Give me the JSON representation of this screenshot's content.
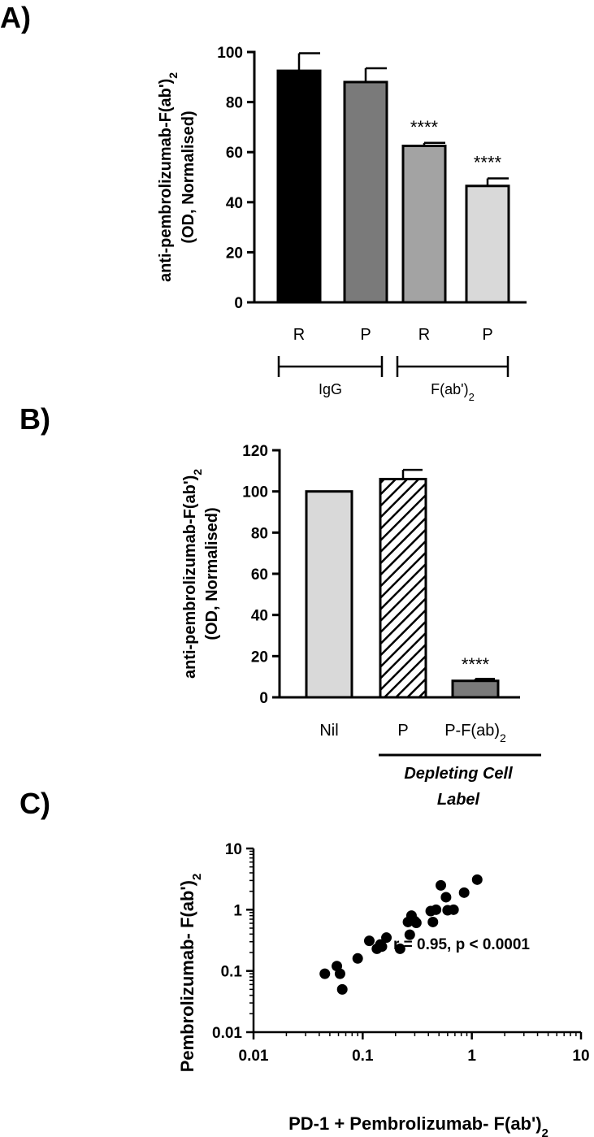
{
  "panels": {
    "a": "A)",
    "b": "B)",
    "c": "C)"
  },
  "colors": {
    "black": "#000000",
    "dark_gray": "#7a7a7a",
    "mid_gray": "#a3a3a3",
    "light_gray": "#d9d9d9"
  },
  "chart_data": [
    {
      "type": "bar",
      "panel": "A)",
      "ylabel_line1": "anti-pembrolizumab-F(ab')",
      "ylabel_sub": "2",
      "ylabel_line2": "(OD, Normalised)",
      "ylim": [
        0,
        100
      ],
      "yticks": [
        0,
        20,
        40,
        60,
        80,
        100
      ],
      "categories": [
        "R",
        "P",
        "R",
        "P"
      ],
      "values": [
        92.5,
        88,
        62.5,
        46.5
      ],
      "errors": [
        7,
        5.5,
        1.2,
        3
      ],
      "fills": [
        "#000000",
        "#7a7a7a",
        "#a3a3a3",
        "#d9d9d9"
      ],
      "significance": [
        "",
        "",
        "****",
        "****"
      ],
      "groups": [
        {
          "label": "IgG",
          "sub": "",
          "span": [
            0,
            1
          ]
        },
        {
          "label": "F(ab')",
          "sub": "2",
          "span": [
            2,
            3
          ]
        }
      ]
    },
    {
      "type": "bar",
      "panel": "B)",
      "ylabel_line1": "anti-pembrolizumab-F(ab')",
      "ylabel_sub": "2",
      "ylabel_line2": "(OD, Normalised)",
      "ylim": [
        0,
        120
      ],
      "yticks": [
        0,
        20,
        40,
        60,
        80,
        100,
        120
      ],
      "categories": [
        "Nil",
        "P",
        "P-F(ab)"
      ],
      "category_subs": [
        "",
        "",
        "2"
      ],
      "values": [
        100,
        106,
        8
      ],
      "errors": [
        0,
        4.5,
        1
      ],
      "fills": [
        "#d9d9d9",
        "hatch",
        "#7a7a7a"
      ],
      "significance": [
        "",
        "",
        "****"
      ],
      "group_label_line1": "Depleting Cell",
      "group_label_line2": "Label",
      "group_span": [
        1,
        2
      ]
    },
    {
      "type": "scatter",
      "panel": "C)",
      "xscale": "log",
      "yscale": "log",
      "xlim": [
        0.01,
        10
      ],
      "ylim": [
        0.01,
        10
      ],
      "xticks": [
        "0.01",
        "0.1",
        "1",
        "10"
      ],
      "yticks": [
        "0.01",
        "0.1",
        "1",
        "10"
      ],
      "xlabel": "PD-1 + Pembrolizumab- F(ab')",
      "xlabel_sub": "2",
      "ylabel": "Pembrolizumab- F(ab')",
      "ylabel_sub": "2",
      "annotation": "r = 0.95, p < 0.0001",
      "points": [
        {
          "x": 0.045,
          "y": 0.09
        },
        {
          "x": 0.058,
          "y": 0.12
        },
        {
          "x": 0.062,
          "y": 0.09
        },
        {
          "x": 0.065,
          "y": 0.05
        },
        {
          "x": 0.09,
          "y": 0.16
        },
        {
          "x": 0.115,
          "y": 0.31
        },
        {
          "x": 0.135,
          "y": 0.23
        },
        {
          "x": 0.145,
          "y": 0.27
        },
        {
          "x": 0.15,
          "y": 0.25
        },
        {
          "x": 0.165,
          "y": 0.35
        },
        {
          "x": 0.22,
          "y": 0.23
        },
        {
          "x": 0.26,
          "y": 0.63
        },
        {
          "x": 0.27,
          "y": 0.39
        },
        {
          "x": 0.28,
          "y": 0.8
        },
        {
          "x": 0.3,
          "y": 0.65
        },
        {
          "x": 0.31,
          "y": 0.61
        },
        {
          "x": 0.42,
          "y": 0.95
        },
        {
          "x": 0.44,
          "y": 0.63
        },
        {
          "x": 0.47,
          "y": 1.0
        },
        {
          "x": 0.52,
          "y": 2.5
        },
        {
          "x": 0.58,
          "y": 1.6
        },
        {
          "x": 0.6,
          "y": 0.98
        },
        {
          "x": 0.68,
          "y": 1.0
        },
        {
          "x": 0.85,
          "y": 1.9
        },
        {
          "x": 1.12,
          "y": 3.1
        }
      ]
    }
  ]
}
